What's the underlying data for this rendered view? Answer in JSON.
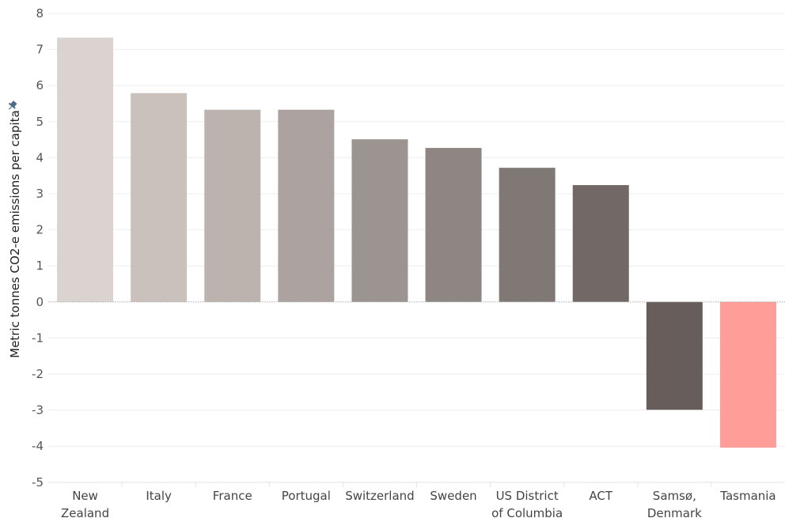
{
  "chart_data": {
    "type": "bar",
    "title": "",
    "xlabel": "",
    "ylabel": "Metric tonnes CO2-e emissions per capita",
    "ylim": [
      -5,
      8
    ],
    "yticks": [
      8,
      7,
      6,
      5,
      4,
      3,
      2,
      1,
      0,
      -1,
      -2,
      -3,
      -4,
      -5
    ],
    "grid": true,
    "legend": "none",
    "categories": [
      [
        "New",
        "Zealand"
      ],
      [
        "Italy"
      ],
      [
        "France"
      ],
      [
        "Portugal"
      ],
      [
        "Switzerland"
      ],
      [
        "Sweden"
      ],
      [
        "US District",
        "of Columbia"
      ],
      [
        "ACT"
      ],
      [
        "Samsø,",
        "Denmark"
      ],
      [
        "Tasmania"
      ]
    ],
    "values": [
      7.33,
      5.79,
      5.33,
      5.33,
      4.51,
      4.27,
      3.72,
      3.24,
      -2.99,
      -4.04
    ],
    "colors": [
      "#dbd3d0",
      "#cbc1bc",
      "#bcb2ae",
      "#aca29f",
      "#9c9491",
      "#8e8683",
      "#807875",
      "#726966",
      "#675e5b",
      "#ff9d99"
    ]
  }
}
